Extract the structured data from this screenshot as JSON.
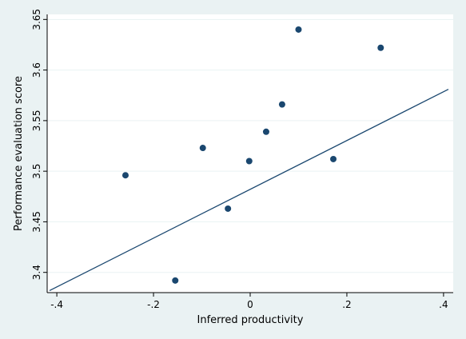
{
  "chart_data": {
    "type": "scatter",
    "title": "",
    "xlabel": "Inferred productivity",
    "ylabel": "Performance evaluation score",
    "xlim": [
      -0.42,
      0.42
    ],
    "ylim": [
      3.38,
      3.655
    ],
    "x_ticks": [
      {
        "value": -0.4,
        "label": "-.4"
      },
      {
        "value": -0.2,
        "label": "-.2"
      },
      {
        "value": 0,
        "label": "0"
      },
      {
        "value": 0.2,
        "label": ".2"
      },
      {
        "value": 0.4,
        "label": ".4"
      }
    ],
    "y_ticks": [
      {
        "value": 3.4,
        "label": "3.4"
      },
      {
        "value": 3.45,
        "label": "3.45"
      },
      {
        "value": 3.5,
        "label": "3.5"
      },
      {
        "value": 3.55,
        "label": "3.55"
      },
      {
        "value": 3.6,
        "label": "3.6"
      },
      {
        "value": 3.65,
        "label": "3.65"
      }
    ],
    "grid": "horizontal",
    "series": [
      {
        "type": "scatter",
        "color": "#1a476f",
        "points": [
          {
            "x": -0.258,
            "y": 3.496
          },
          {
            "x": -0.155,
            "y": 3.392
          },
          {
            "x": -0.098,
            "y": 3.523
          },
          {
            "x": -0.046,
            "y": 3.463
          },
          {
            "x": -0.002,
            "y": 3.51
          },
          {
            "x": 0.033,
            "y": 3.539
          },
          {
            "x": 0.066,
            "y": 3.566
          },
          {
            "x": 0.1,
            "y": 3.64
          },
          {
            "x": 0.172,
            "y": 3.512
          },
          {
            "x": 0.27,
            "y": 3.622
          }
        ]
      },
      {
        "type": "line",
        "color": "#1a476f",
        "points": [
          {
            "x": -0.415,
            "y": 3.382
          },
          {
            "x": 0.41,
            "y": 3.581
          }
        ]
      }
    ]
  }
}
